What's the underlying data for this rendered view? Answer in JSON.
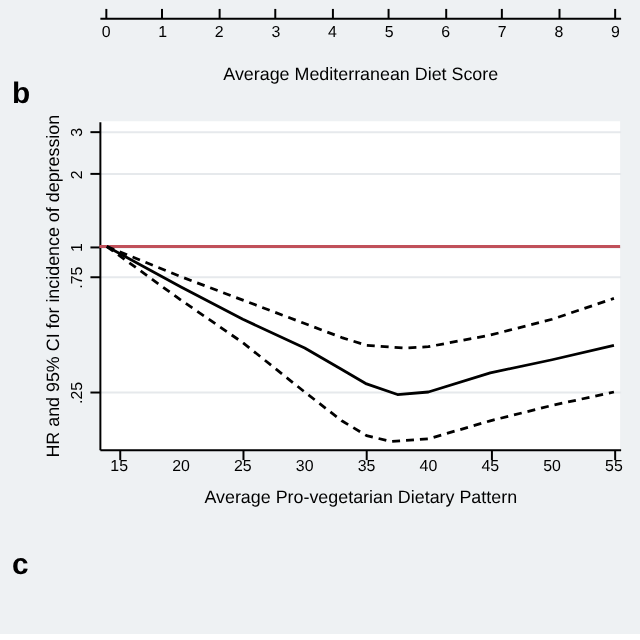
{
  "chart_data": {
    "type": "line",
    "xlabel": "Average Pro-vegetarian Dietary Pattern",
    "ylabel": "HR and 95% CI for incidence of depression",
    "x2label": "Average Mediterranean Diet Score",
    "log": "y",
    "xlim": [
      13.4,
      55.5
    ],
    "xticks": [
      15,
      20,
      25,
      30,
      35,
      40,
      45,
      50,
      55
    ],
    "x2lim": [
      -0.1,
      9.1
    ],
    "x2ticks": [
      0,
      1,
      2,
      3,
      4,
      5,
      6,
      7,
      8,
      9
    ],
    "ylim": [
      0.145,
      3.3
    ],
    "yticks": [
      {
        "value": 0.25,
        "label": ".25"
      },
      {
        "value": 0.75,
        "label": ".75"
      },
      1,
      2,
      3
    ],
    "grid": "y",
    "marker": "none",
    "ref_lines": [
      {
        "axis": "y",
        "value": 1,
        "color": "#c0505a",
        "line_style": "solid"
      }
    ],
    "annotations": [
      "b",
      "c"
    ],
    "series": [
      {
        "color": "#000000",
        "line_style": "solid",
        "x": [
          14,
          20,
          25,
          30,
          33,
          35,
          37.5,
          40,
          45,
          50,
          55
        ],
        "values": [
          1,
          0.68,
          0.5,
          0.38,
          0.31,
          0.27,
          0.244,
          0.25,
          0.3,
          0.34,
          0.39
        ]
      },
      {
        "color": "#000000",
        "line_style": "dashed",
        "x": [
          14,
          20,
          25,
          30,
          33,
          35,
          38,
          40,
          45,
          50,
          55
        ],
        "values": [
          1,
          0.75,
          0.6,
          0.48,
          0.42,
          0.39,
          0.38,
          0.385,
          0.43,
          0.5,
          0.61
        ]
      },
      {
        "color": "#000000",
        "line_style": "dashed",
        "x": [
          14,
          20,
          25,
          30,
          33,
          35,
          37,
          40,
          45,
          50,
          55
        ],
        "values": [
          1,
          0.6,
          0.4,
          0.25,
          0.19,
          0.165,
          0.156,
          0.16,
          0.19,
          0.22,
          0.25
        ]
      }
    ]
  }
}
